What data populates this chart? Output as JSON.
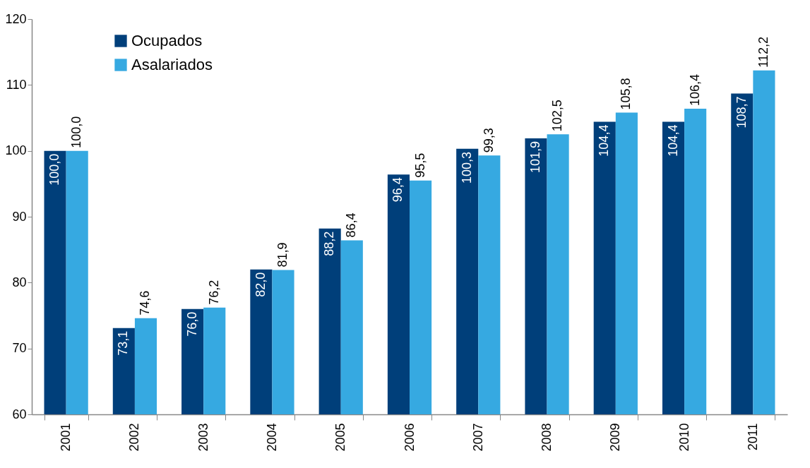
{
  "chart_data": {
    "type": "bar",
    "categories": [
      "2001",
      "2002",
      "2003",
      "2004",
      "2005",
      "2006",
      "2007",
      "2008",
      "2009",
      "2010",
      "2011"
    ],
    "series": [
      {
        "name": "Ocupados",
        "color": "#003f7a",
        "values": [
          100.0,
          73.1,
          76.0,
          82.0,
          88.2,
          96.4,
          100.3,
          101.9,
          104.4,
          104.4,
          108.7
        ],
        "value_labels": [
          "100,0",
          "73,1",
          "76,0",
          "82,0",
          "88,2",
          "96,4",
          "100,3",
          "101,9",
          "104,4",
          "104,4",
          "108,7"
        ]
      },
      {
        "name": "Asalariados",
        "color": "#36a9e1",
        "values": [
          100.0,
          74.6,
          76.2,
          81.9,
          86.4,
          95.5,
          99.3,
          102.5,
          105.8,
          106.4,
          112.2
        ],
        "value_labels": [
          "100,0",
          "74,6",
          "76,2",
          "81,9",
          "86,4",
          "95,5",
          "99,3",
          "102,5",
          "105,8",
          "106,4",
          "112,2"
        ]
      }
    ],
    "ylim": [
      60,
      120
    ],
    "yticks": [
      60,
      70,
      80,
      90,
      100,
      110,
      120
    ],
    "grid": false,
    "legend": "top left"
  }
}
